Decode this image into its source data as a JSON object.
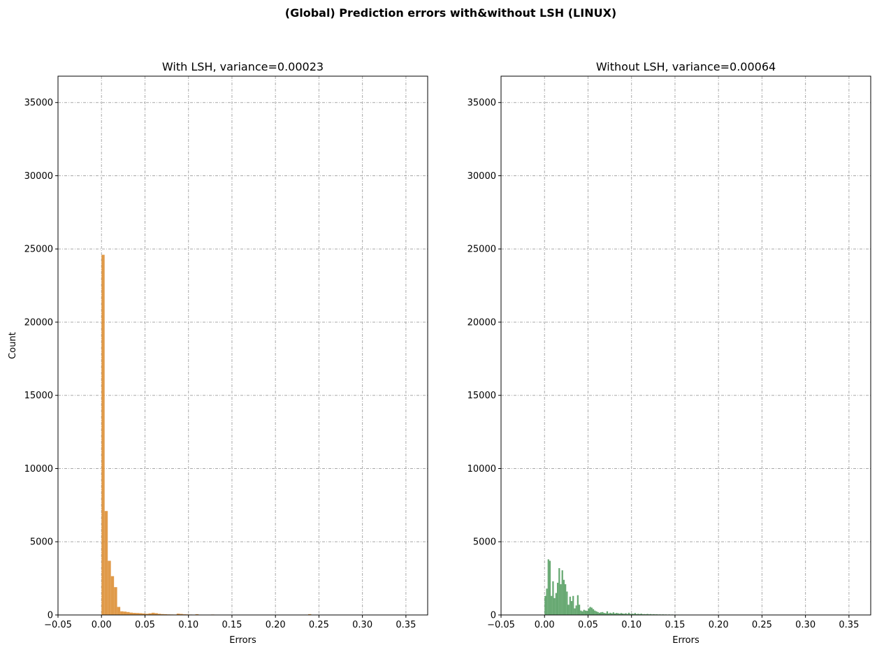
{
  "figure_title": "(Global) Prediction errors with&without LSH (LINUX)",
  "chart_data": [
    {
      "type": "bar",
      "subtype": "histogram",
      "title": "With LSH, variance=0.00023",
      "xlabel": "Errors",
      "ylabel": "Count",
      "xlim": [
        -0.05,
        0.375
      ],
      "ylim": [
        0,
        36800
      ],
      "xticks": [
        -0.05,
        0.0,
        0.05,
        0.1,
        0.15,
        0.2,
        0.25,
        0.3,
        0.35
      ],
      "xtick_labels": [
        "−0.05",
        "0.00",
        "0.05",
        "0.10",
        "0.15",
        "0.20",
        "0.25",
        "0.30",
        "0.35"
      ],
      "yticks": [
        0,
        5000,
        10000,
        15000,
        20000,
        25000,
        30000,
        35000
      ],
      "ytick_labels": [
        "0",
        "5000",
        "10000",
        "15000",
        "20000",
        "25000",
        "30000",
        "35000"
      ],
      "grid": true,
      "color": "#dd8f35",
      "bin_width": 0.0036,
      "bin_start": 0.0,
      "counts": [
        24600,
        7100,
        3700,
        2650,
        1900,
        550,
        250,
        230,
        200,
        160,
        140,
        130,
        120,
        100,
        80,
        110,
        150,
        120,
        80,
        60,
        50,
        40,
        35,
        30,
        90,
        70,
        45,
        40,
        30,
        25,
        50,
        25,
        20,
        15,
        20,
        30,
        18,
        15,
        12,
        20,
        10,
        8,
        10,
        6,
        5,
        5,
        4,
        4,
        3,
        3,
        3,
        2,
        2,
        2,
        2,
        2,
        2,
        2,
        2,
        2,
        2,
        2,
        2,
        2,
        2,
        2,
        55,
        2,
        2,
        2,
        2,
        2,
        2,
        2,
        2,
        2,
        2,
        2,
        2,
        2,
        2,
        2,
        2,
        2,
        2,
        2,
        2,
        2,
        2,
        2,
        2,
        2,
        2,
        2,
        2,
        2,
        2,
        2,
        2,
        2
      ]
    },
    {
      "type": "bar",
      "subtype": "histogram",
      "title": "Without LSH, variance=0.00064",
      "xlabel": "Errors",
      "ylabel": "",
      "xlim": [
        -0.05,
        0.375
      ],
      "ylim": [
        0,
        36800
      ],
      "xticks": [
        -0.05,
        0.0,
        0.05,
        0.1,
        0.15,
        0.2,
        0.25,
        0.3,
        0.35
      ],
      "xtick_labels": [
        "−0.05",
        "0.00",
        "0.05",
        "0.10",
        "0.15",
        "0.20",
        "0.25",
        "0.30",
        "0.35"
      ],
      "yticks": [
        0,
        5000,
        10000,
        15000,
        20000,
        25000,
        30000,
        35000
      ],
      "ytick_labels": [
        "0",
        "5000",
        "10000",
        "15000",
        "20000",
        "25000",
        "30000",
        "35000"
      ],
      "grid": true,
      "color": "#559e62",
      "bin_width": 0.00178,
      "bin_start": 0.0,
      "counts": [
        1300,
        1800,
        3800,
        3700,
        1300,
        2300,
        1150,
        1500,
        2200,
        3200,
        2100,
        3050,
        2400,
        2100,
        1600,
        700,
        1250,
        950,
        1300,
        450,
        650,
        1350,
        700,
        300,
        250,
        350,
        300,
        280,
        450,
        550,
        500,
        400,
        300,
        250,
        200,
        150,
        180,
        200,
        140,
        120,
        250,
        110,
        150,
        110,
        180,
        100,
        140,
        120,
        90,
        130,
        100,
        80,
        120,
        70,
        150,
        70,
        90,
        70,
        130,
        60,
        80,
        60,
        90,
        50,
        60,
        50,
        70,
        45,
        60,
        40,
        55,
        40,
        45,
        35,
        40,
        30,
        40,
        30,
        35,
        25,
        35,
        25,
        30,
        20,
        30,
        20,
        25,
        20,
        25,
        15,
        20,
        15,
        20,
        15,
        20,
        15,
        15,
        10,
        15,
        10,
        12,
        10,
        12,
        8,
        10,
        8,
        10,
        6,
        8,
        6,
        8,
        5,
        6,
        5,
        6,
        4,
        5,
        4,
        5,
        4
      ]
    }
  ]
}
